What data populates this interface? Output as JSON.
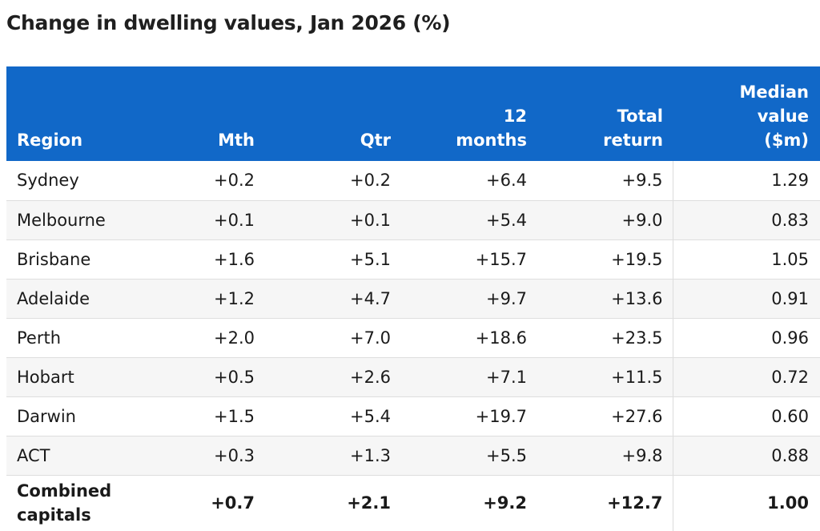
{
  "chart_data": {
    "type": "table",
    "title": "Change in dwelling values, Jan 2026 (%)",
    "columns": {
      "region": "Region",
      "mth": "Mth",
      "qtr": "Qtr",
      "months12": "12 months",
      "total_return": "Total return",
      "median_value": "Median value ($m)"
    },
    "rows": [
      {
        "region": "Sydney",
        "mth": "+0.2",
        "qtr": "+0.2",
        "months12": "+6.4",
        "total_return": "+9.5",
        "median_value": "1.29"
      },
      {
        "region": "Melbourne",
        "mth": "+0.1",
        "qtr": "+0.1",
        "months12": "+5.4",
        "total_return": "+9.0",
        "median_value": "0.83"
      },
      {
        "region": "Brisbane",
        "mth": "+1.6",
        "qtr": "+5.1",
        "months12": "+15.7",
        "total_return": "+19.5",
        "median_value": "1.05"
      },
      {
        "region": "Adelaide",
        "mth": "+1.2",
        "qtr": "+4.7",
        "months12": "+9.7",
        "total_return": "+13.6",
        "median_value": "0.91"
      },
      {
        "region": "Perth",
        "mth": "+2.0",
        "qtr": "+7.0",
        "months12": "+18.6",
        "total_return": "+23.5",
        "median_value": "0.96"
      },
      {
        "region": "Hobart",
        "mth": "+0.5",
        "qtr": "+2.6",
        "months12": "+7.1",
        "total_return": "+11.5",
        "median_value": "0.72"
      },
      {
        "region": "Darwin",
        "mth": "+1.5",
        "qtr": "+5.4",
        "months12": "+19.7",
        "total_return": "+27.6",
        "median_value": "0.60"
      },
      {
        "region": "ACT",
        "mth": "+0.3",
        "qtr": "+1.3",
        "months12": "+5.5",
        "total_return": "+9.8",
        "median_value": "0.88"
      },
      {
        "region": "Combined capitals",
        "mth": "+0.7",
        "qtr": "+2.1",
        "months12": "+9.2",
        "total_return": "+12.7",
        "median_value": "1.00"
      }
    ],
    "colors": {
      "header_background": "#1168c8",
      "header_text": "#ffffff",
      "alternate_row": "#f6f6f6"
    }
  }
}
